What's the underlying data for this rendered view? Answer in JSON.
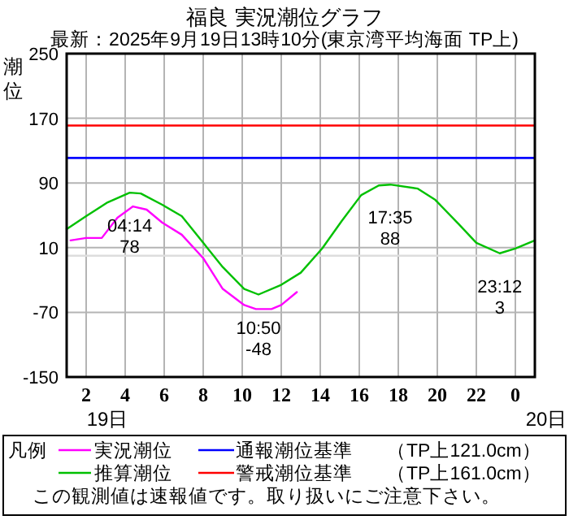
{
  "chart_data": {
    "type": "line",
    "title": "福良 実況潮位グラフ",
    "subtitle": "最新：2025年9月19日13時10分(東京湾平均海面 TP上)",
    "ylabel": "潮位",
    "legend_title": "凡例",
    "legend": "bottom",
    "grid": true,
    "marker": "none",
    "line_style": "solid",
    "xlim": [
      "2025-09-19T01:00",
      "2025-09-20T01:00"
    ],
    "xticks": [
      {
        "value": "2025-09-19T02:00",
        "label": "2"
      },
      {
        "value": "2025-09-19T04:00",
        "label": "4"
      },
      {
        "value": "2025-09-19T06:00",
        "label": "6"
      },
      {
        "value": "2025-09-19T08:00",
        "label": "8"
      },
      {
        "value": "2025-09-19T10:00",
        "label": "10"
      },
      {
        "value": "2025-09-19T12:00",
        "label": "12"
      },
      {
        "value": "2025-09-19T14:00",
        "label": "14"
      },
      {
        "value": "2025-09-19T16:00",
        "label": "16"
      },
      {
        "value": "2025-09-19T18:00",
        "label": "18"
      },
      {
        "value": "2025-09-19T20:00",
        "label": "20"
      },
      {
        "value": "2025-09-19T22:00",
        "label": "22"
      },
      {
        "value": "2025-09-20T00:00",
        "label": "0"
      }
    ],
    "ylim": [
      -150,
      250
    ],
    "yticks": [
      -150,
      -70,
      10,
      90,
      170,
      250
    ],
    "series": [
      {
        "name": "実況潮位",
        "color": "#ff00ff",
        "x": [
          "2025-09-19T01:12",
          "2025-09-19T02:00",
          "2025-09-19T02:48",
          "2025-09-19T03:36",
          "2025-09-19T04:24",
          "2025-09-19T05:06",
          "2025-09-19T05:54",
          "2025-09-19T06:54",
          "2025-09-19T08:00",
          "2025-09-19T09:00",
          "2025-09-19T10:06",
          "2025-09-19T10:42",
          "2025-09-19T11:30",
          "2025-09-19T12:00",
          "2025-09-19T12:48"
        ],
        "values": [
          19,
          22,
          22,
          47,
          61,
          57,
          41,
          26,
          -3,
          -41,
          -61,
          -66,
          -66,
          -61,
          -45
        ]
      },
      {
        "name": "推算潮位",
        "color": "#00c000",
        "x": [
          "2025-09-19T01:00",
          "2025-09-19T02:00",
          "2025-09-19T03:06",
          "2025-09-19T04:14",
          "2025-09-19T04:48",
          "2025-09-19T05:54",
          "2025-09-19T06:54",
          "2025-09-19T08:00",
          "2025-09-19T09:00",
          "2025-09-19T10:06",
          "2025-09-19T10:50",
          "2025-09-19T12:00",
          "2025-09-19T13:00",
          "2025-09-19T14:06",
          "2025-09-19T15:06",
          "2025-09-19T16:06",
          "2025-09-19T17:00",
          "2025-09-19T17:35",
          "2025-09-19T19:00",
          "2025-09-19T19:54",
          "2025-09-19T21:06",
          "2025-09-19T22:00",
          "2025-09-19T23:12",
          "2025-09-20T00:00",
          "2025-09-20T01:00"
        ],
        "values": [
          33,
          49,
          66,
          78,
          77,
          63,
          49,
          16,
          -14,
          -41,
          -48,
          -36,
          -21,
          9,
          43,
          75,
          87,
          88,
          83,
          69,
          39,
          16,
          3,
          9,
          19
        ]
      }
    ],
    "ref_lines": [
      {
        "axis": "y",
        "value": 121,
        "label": "通報潮位基準",
        "color": "#0000ff"
      },
      {
        "axis": "y",
        "value": 161,
        "label": "警戒潮位基準",
        "color": "#ff0000"
      },
      {
        "axis": "y",
        "value": 0,
        "color": "#dddddd"
      }
    ],
    "annotations": [
      {
        "text": "04:14\n78",
        "x": "2025-09-19T04:14",
        "y": 78
      },
      {
        "text": "10:50\n-48",
        "x": "2025-09-19T10:50",
        "y": -48
      },
      {
        "text": "17:35\n88",
        "x": "2025-09-19T17:35",
        "y": 88
      },
      {
        "text": "23:12\n3",
        "x": "2025-09-19T23:12",
        "y": 3
      },
      "19日",
      "20日",
      "（TP上121.0cm）",
      "（TP上161.0cm）",
      "この観測値は速報値です。取り扱いにご注意下さい。"
    ]
  }
}
